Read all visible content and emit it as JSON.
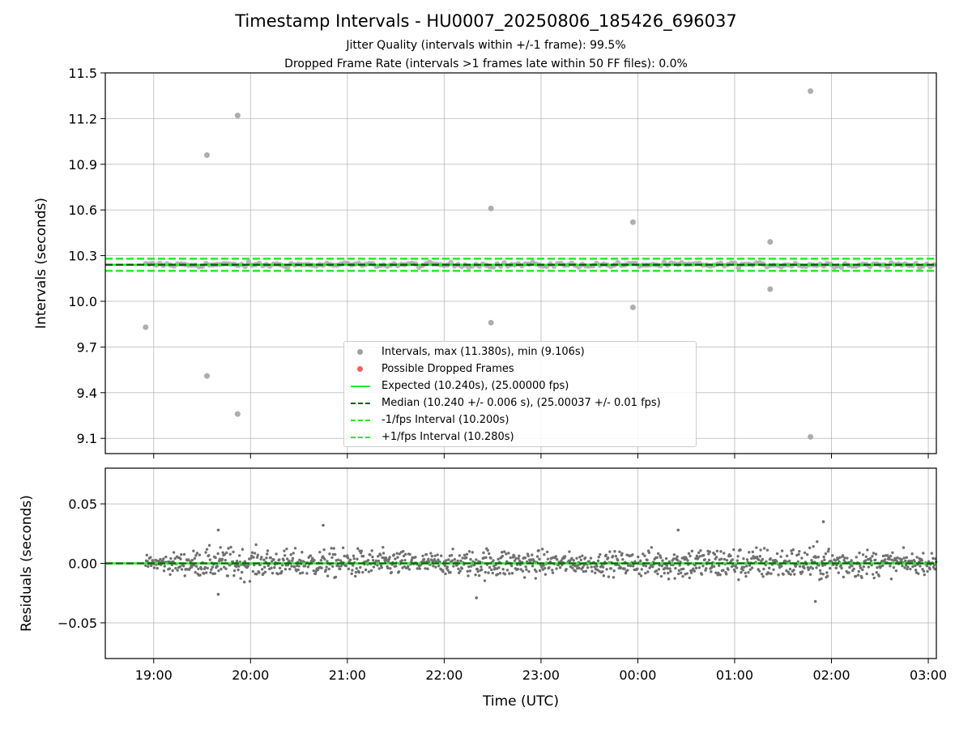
{
  "title": "Timestamp Intervals - HU0007_20250806_185426_696037",
  "subtitle_1": "Jitter Quality (intervals within +/-1 frame): 99.5%",
  "subtitle_2": "Dropped Frame Rate (intervals >1 frames late within 50 FF files): 0.0%",
  "colors": {
    "interval_points": "#a0a0a0",
    "dropped_points": "#f26060",
    "expected_line": "#22ee22",
    "median_line": "#006400",
    "bound_lines": "#22ee22",
    "residual_points": "#707070",
    "grid": "#b0b0b0"
  },
  "chart_data": [
    {
      "type": "scatter",
      "ylabel": "Intervals (seconds)",
      "xlabel": "",
      "x_axis": "time",
      "x_range": [
        "18:30",
        "03:05"
      ],
      "ylim": [
        9.0,
        11.5
      ],
      "y_ticks": [
        9.1,
        9.4,
        9.7,
        10.0,
        10.3,
        10.6,
        10.9,
        11.2,
        11.5
      ],
      "x_ticks": [
        "19:00",
        "20:00",
        "21:00",
        "22:00",
        "23:00",
        "00:00",
        "01:00",
        "02:00",
        "03:00"
      ],
      "grid": true,
      "legend_position": "lower-center",
      "series": [
        {
          "name": "Intervals, max (11.380s), min (9.106s)",
          "marker": "dot",
          "outliers": [
            {
              "t": "18:55",
              "y": 9.83
            },
            {
              "t": "19:33",
              "y": 10.96
            },
            {
              "t": "19:33",
              "y": 9.51
            },
            {
              "t": "19:52",
              "y": 11.22
            },
            {
              "t": "19:52",
              "y": 9.26
            },
            {
              "t": "22:29",
              "y": 10.61
            },
            {
              "t": "22:29",
              "y": 9.86
            },
            {
              "t": "23:57",
              "y": 10.52
            },
            {
              "t": "23:57",
              "y": 9.96
            },
            {
              "t": "01:22",
              "y": 10.39
            },
            {
              "t": "01:22",
              "y": 10.08
            },
            {
              "t": "01:47",
              "y": 11.38
            },
            {
              "t": "01:47",
              "y": 9.11
            }
          ],
          "dense_band": {
            "t_start": "18:55",
            "t_end": "03:05",
            "y_center": 10.24,
            "y_spread": 0.03
          }
        },
        {
          "name": "Possible Dropped Frames",
          "marker": "dot",
          "points": []
        },
        {
          "name": "Expected (10.240s), (25.00000 fps)",
          "type": "hline",
          "y": 10.24,
          "style": "solid"
        },
        {
          "name": "Median (10.240 +/- 0.006 s), (25.00037 +/- 0.01 fps)",
          "type": "hline",
          "y": 10.24,
          "style": "dashed"
        },
        {
          "name": "-1/fps Interval (10.200s)",
          "type": "hline",
          "y": 10.2,
          "style": "dashed"
        },
        {
          "name": "+1/fps Interval (10.280s)",
          "type": "hline",
          "y": 10.28,
          "style": "dashed"
        }
      ]
    },
    {
      "type": "scatter",
      "ylabel": "Residuals (seconds)",
      "xlabel": "Time (UTC)",
      "x_axis": "time",
      "x_range": [
        "18:30",
        "03:05"
      ],
      "ylim": [
        -0.08,
        0.08
      ],
      "y_ticks": [
        -0.05,
        0.0,
        0.05
      ],
      "y_tick_labels": [
        "−0.05",
        "0.00",
        "0.05"
      ],
      "x_ticks": [
        "19:00",
        "20:00",
        "21:00",
        "22:00",
        "23:00",
        "00:00",
        "01:00",
        "02:00",
        "03:00"
      ],
      "grid": true,
      "reference_lines": [
        {
          "y": 0.0,
          "style": "solid"
        },
        {
          "y": 0.0,
          "style": "dashed"
        }
      ],
      "residual_envelope": [
        {
          "t": "18:55",
          "spread": 0.005
        },
        {
          "t": "19:40",
          "spread": 0.012
        },
        {
          "t": "20:30",
          "spread": 0.01
        },
        {
          "t": "21:00",
          "spread": 0.011
        },
        {
          "t": "22:00",
          "spread": 0.008
        },
        {
          "t": "22:30",
          "spread": 0.012
        },
        {
          "t": "23:30",
          "spread": 0.007
        },
        {
          "t": "00:30",
          "spread": 0.013
        },
        {
          "t": "01:30",
          "spread": 0.012
        },
        {
          "t": "02:00",
          "spread": 0.013
        },
        {
          "t": "03:05",
          "spread": 0.006
        }
      ],
      "notable_points": [
        {
          "t": "19:40",
          "y": 0.028
        },
        {
          "t": "20:45",
          "y": 0.032
        },
        {
          "t": "01:55",
          "y": 0.035
        },
        {
          "t": "00:25",
          "y": 0.028
        },
        {
          "t": "01:50",
          "y": -0.032
        },
        {
          "t": "22:20",
          "y": -0.029
        },
        {
          "t": "19:40",
          "y": -0.026
        }
      ]
    }
  ]
}
